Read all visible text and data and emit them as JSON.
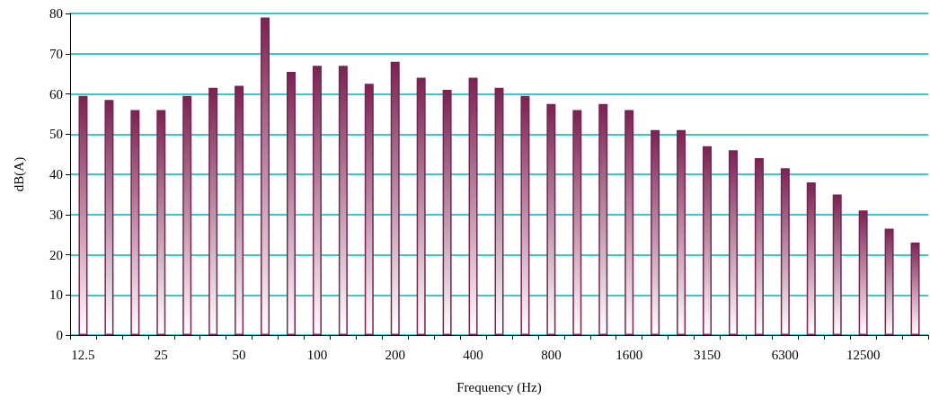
{
  "chart_data": {
    "type": "bar",
    "xlabel": "Frequency (Hz)",
    "ylabel": "dB(A)",
    "categories": [
      "12.5",
      null,
      null,
      "25",
      null,
      null,
      "50",
      null,
      null,
      "100",
      null,
      null,
      "200",
      null,
      null,
      "400",
      null,
      null,
      "800",
      null,
      null,
      "1600",
      null,
      null,
      "3150",
      null,
      null,
      "6300",
      null,
      null,
      "12500",
      null,
      null
    ],
    "values": [
      59.5,
      58.5,
      56,
      56,
      59.5,
      61.5,
      62,
      79,
      65.5,
      67,
      67,
      62.5,
      68,
      64,
      61,
      64,
      61.5,
      59.5,
      57.5,
      56,
      57.5,
      56,
      51,
      51,
      47,
      46,
      44,
      41.5,
      38,
      35,
      31,
      26.5,
      23
    ],
    "color": "#7a2352",
    "ylim": [
      0,
      80
    ],
    "yticks": [
      0,
      10,
      20,
      30,
      40,
      50,
      60,
      70,
      80
    ],
    "grid": "y"
  }
}
